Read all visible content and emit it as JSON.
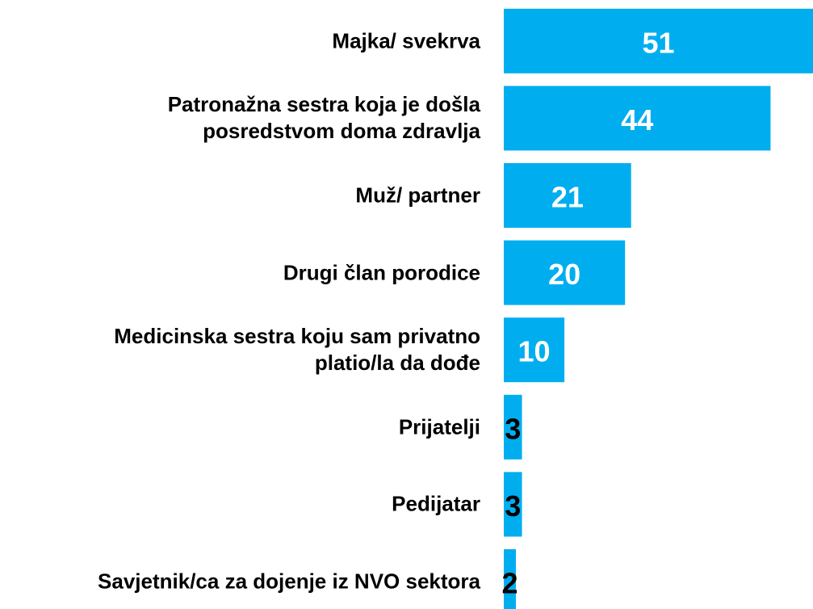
{
  "chart_data": {
    "type": "bar",
    "orientation": "horizontal",
    "categories": [
      "Majka/ svekrva",
      "Patronažna sestra koja je došla\nposredstvom doma zdravlja",
      "Muž/ partner",
      "Drugi član porodice",
      "Medicinska sestra koju sam privatno\nplatio/la da dođe",
      "Prijatelji",
      "Pedijatar",
      "Savjetnik/ca za dojenje iz NVO sektora"
    ],
    "values": [
      51,
      44,
      21,
      20,
      10,
      3,
      3,
      2
    ],
    "color": "#00aeef"
  }
}
